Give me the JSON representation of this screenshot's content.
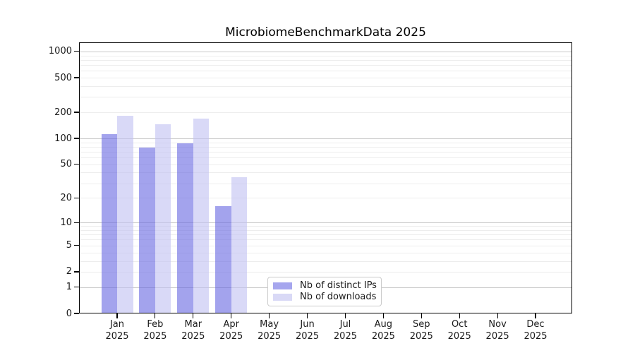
{
  "figure": {
    "background": "#ffffff"
  },
  "chart_data": {
    "type": "bar",
    "title": "MicrobiomeBenchmarkData 2025",
    "categories": [
      "Jan 2025",
      "Feb 2025",
      "Mar 2025",
      "Apr 2025",
      "May 2025",
      "Jun 2025",
      "Jul 2025",
      "Aug 2025",
      "Sep 2025",
      "Oct 2025",
      "Nov 2025",
      "Dec 2025"
    ],
    "x_tick_labels": [
      [
        "Jan",
        "2025"
      ],
      [
        "Feb",
        "2025"
      ],
      [
        "Mar",
        "2025"
      ],
      [
        "Apr",
        "2025"
      ],
      [
        "May",
        "2025"
      ],
      [
        "Jun",
        "2025"
      ],
      [
        "Jul",
        "2025"
      ],
      [
        "Aug",
        "2025"
      ],
      [
        "Sep",
        "2025"
      ],
      [
        "Oct",
        "2025"
      ],
      [
        "Nov",
        "2025"
      ],
      [
        "Dec",
        "2025"
      ]
    ],
    "series": [
      {
        "name": "Nb of distinct IPs",
        "color": "#a6a6ee",
        "fill": "rgba(107,107,226,0.62)",
        "values": [
          112,
          78,
          88,
          16,
          0,
          0,
          0,
          0,
          0,
          0,
          0,
          0
        ]
      },
      {
        "name": "Nb of downloads",
        "color": "#d9d9f6",
        "fill": "rgba(194,194,242,0.62)",
        "values": [
          183,
          147,
          168,
          35,
          0,
          0,
          0,
          0,
          0,
          0,
          0,
          0
        ]
      }
    ],
    "y_axis": {
      "scale": "log1p (position = log10(1+value))",
      "tick_values": [
        0,
        1,
        2,
        5,
        10,
        20,
        50,
        100,
        200,
        500,
        1000
      ],
      "tick_labels": [
        "0",
        "1",
        "2",
        "5",
        "10",
        "20",
        "50",
        "100",
        "200",
        "500",
        "1000"
      ],
      "major_gridline_values": [
        1,
        10,
        100,
        1000
      ],
      "minor_gridline_decades": [
        1,
        10,
        100
      ],
      "range": [
        0,
        1100
      ]
    },
    "legend": {
      "entries": [
        "Nb of distinct IPs",
        "Nb of downloads"
      ],
      "position": "inside-bottom-center"
    },
    "grid": true,
    "colors": {
      "grid_major": "#c9c9c9",
      "grid_minor": "#ededed",
      "axis": "#000000",
      "text": "#1a1a1a"
    }
  }
}
